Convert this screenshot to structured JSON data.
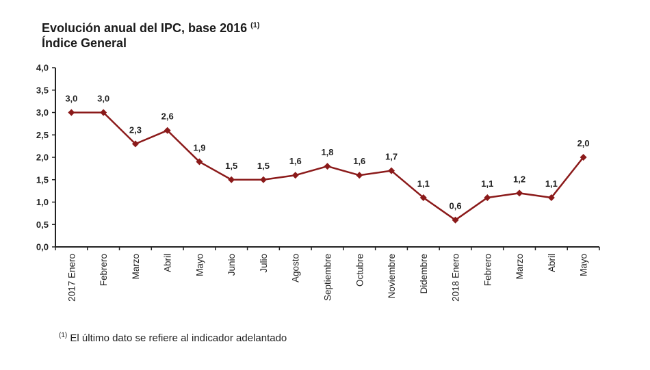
{
  "chart_data": {
    "type": "line",
    "title": "Evolución anual del IPC, base 2016",
    "title_footnote_marker": "(1)",
    "subtitle": "Índice General",
    "xlabel": "",
    "ylabel": "",
    "categories": [
      "2017 Enero",
      "Febrero",
      "Marzo",
      "Abril",
      "Mayo",
      "Junio",
      "Julio",
      "Agosto",
      "Septiembre",
      "Octubre",
      "Noviembre",
      "Didembre",
      "2018 Enero",
      "Febrero",
      "Marzo",
      "Abril",
      "Mayo"
    ],
    "series": [
      {
        "name": "Índice General",
        "color": "#8b1a1a",
        "values": [
          3.0,
          3.0,
          2.3,
          2.6,
          1.9,
          1.5,
          1.5,
          1.6,
          1.8,
          1.6,
          1.7,
          1.1,
          0.6,
          1.1,
          1.2,
          1.1,
          2.0
        ],
        "data_labels": [
          "3,0",
          "3,0",
          "2,3",
          "2,6",
          "1,9",
          "1,5",
          "1,5",
          "1,6",
          "1,8",
          "1,6",
          "1,7",
          "1,1",
          "0,6",
          "1,1",
          "1,2",
          "1,1",
          "2,0"
        ]
      }
    ],
    "ylim": [
      0,
      4
    ],
    "yticks": [
      0,
      0.5,
      1,
      1.5,
      2,
      2.5,
      3,
      3.5,
      4
    ],
    "ytick_labels": [
      "0,0",
      "0,5",
      "1,0",
      "1,5",
      "2,0",
      "2,5",
      "3,0",
      "3,5",
      "4,0"
    ],
    "grid": false,
    "legend": "none",
    "marker": "diamond",
    "footnote_marker": "(1)",
    "footnote": "El último dato se refiere al indicador adelantado"
  }
}
